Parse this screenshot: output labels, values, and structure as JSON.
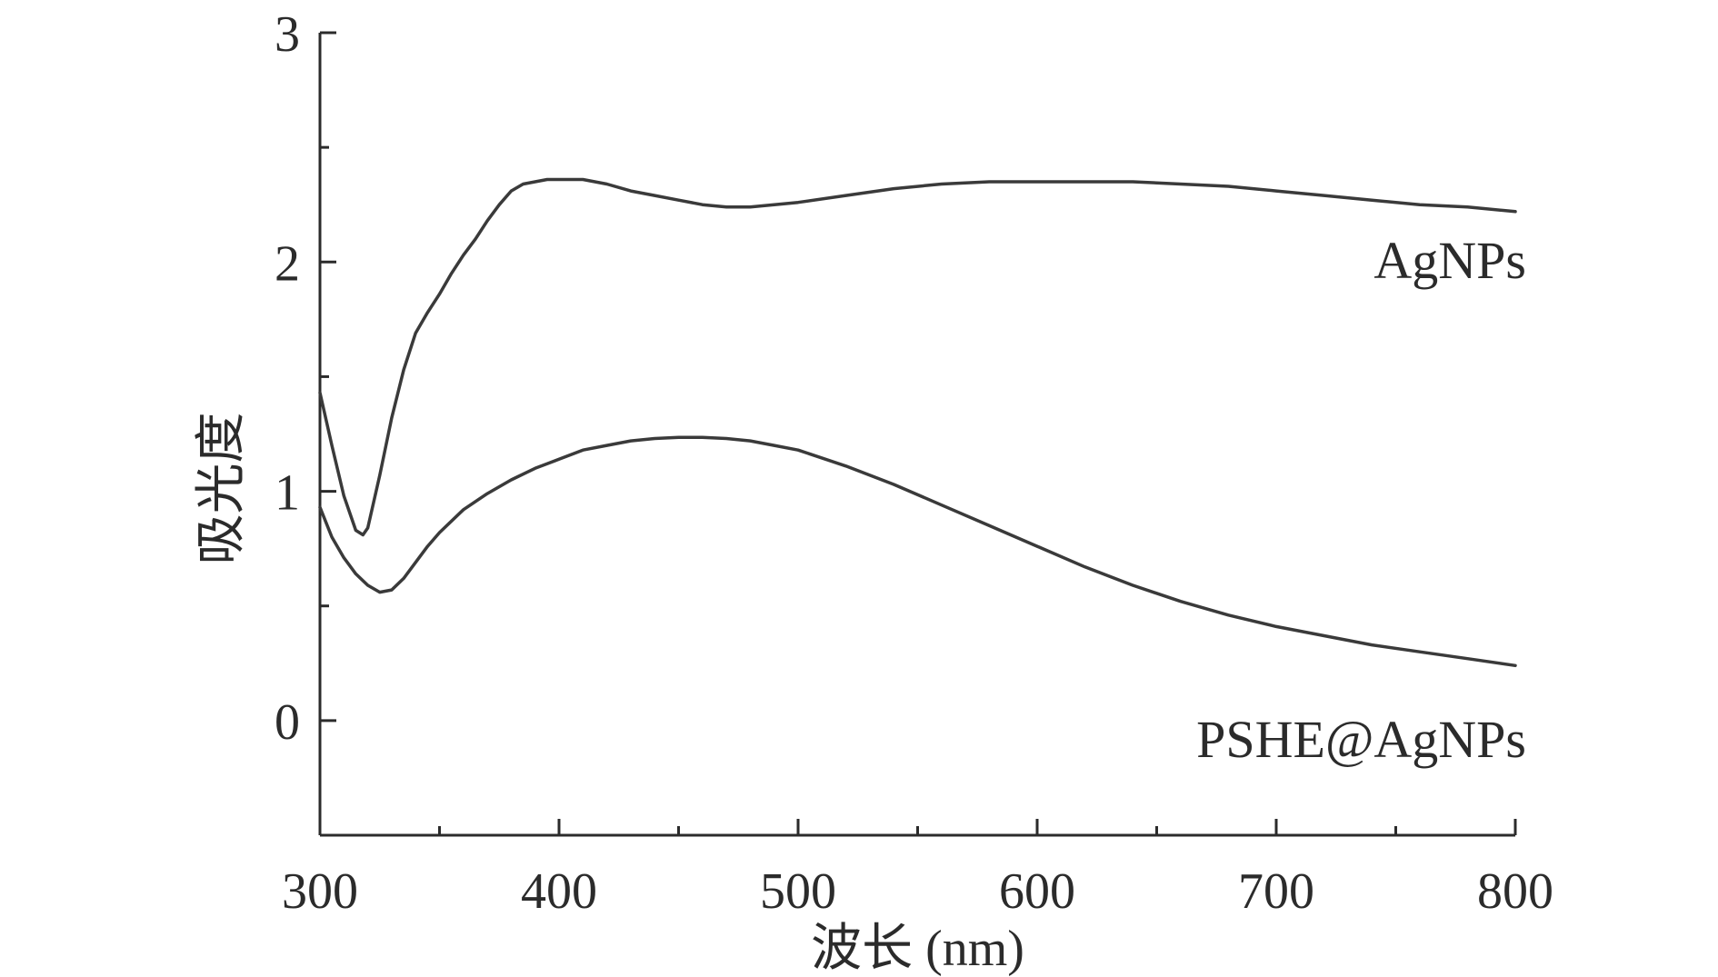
{
  "chart_data": {
    "type": "line",
    "xlabel": "波长 (nm)",
    "ylabel": "吸光度",
    "xlim": [
      300,
      800
    ],
    "ylim": [
      -0.5,
      3
    ],
    "x_ticks": [
      300,
      400,
      500,
      600,
      700,
      800
    ],
    "x_tick_labels": [
      "300",
      "400",
      "500",
      "600",
      "700",
      "800"
    ],
    "x_minor_ticks": [
      350,
      450,
      550,
      650,
      750
    ],
    "y_ticks": [
      0,
      1,
      2,
      3
    ],
    "y_tick_labels": [
      "0",
      "1",
      "2",
      "3"
    ],
    "y_minor_ticks": [
      0.5,
      1.5,
      2.5
    ],
    "grid": false,
    "legend": "none",
    "series": [
      {
        "name": "AgNPs",
        "x": [
          300,
          305,
          310,
          315,
          318,
          320,
          325,
          330,
          335,
          340,
          345,
          350,
          355,
          360,
          365,
          370,
          375,
          380,
          385,
          390,
          395,
          400,
          410,
          420,
          430,
          440,
          450,
          460,
          470,
          480,
          490,
          500,
          520,
          540,
          560,
          580,
          600,
          620,
          640,
          660,
          680,
          700,
          720,
          740,
          760,
          780,
          800
        ],
        "y": [
          1.43,
          1.2,
          0.98,
          0.83,
          0.81,
          0.84,
          1.07,
          1.32,
          1.53,
          1.69,
          1.78,
          1.86,
          1.95,
          2.03,
          2.1,
          2.18,
          2.25,
          2.31,
          2.34,
          2.35,
          2.36,
          2.36,
          2.36,
          2.34,
          2.31,
          2.29,
          2.27,
          2.25,
          2.24,
          2.24,
          2.25,
          2.26,
          2.29,
          2.32,
          2.34,
          2.35,
          2.35,
          2.35,
          2.35,
          2.34,
          2.33,
          2.31,
          2.29,
          2.27,
          2.25,
          2.24,
          2.22
        ]
      },
      {
        "name": "PSHE@AgNPs",
        "x": [
          300,
          305,
          310,
          315,
          320,
          325,
          330,
          335,
          340,
          345,
          350,
          360,
          370,
          380,
          390,
          400,
          410,
          420,
          430,
          440,
          450,
          460,
          470,
          480,
          490,
          500,
          520,
          540,
          560,
          580,
          600,
          620,
          640,
          660,
          680,
          700,
          720,
          740,
          760,
          780,
          800
        ],
        "y": [
          0.93,
          0.8,
          0.71,
          0.64,
          0.59,
          0.56,
          0.57,
          0.62,
          0.69,
          0.76,
          0.82,
          0.92,
          0.99,
          1.05,
          1.1,
          1.14,
          1.18,
          1.2,
          1.22,
          1.23,
          1.235,
          1.235,
          1.23,
          1.22,
          1.2,
          1.18,
          1.11,
          1.03,
          0.94,
          0.85,
          0.76,
          0.67,
          0.59,
          0.52,
          0.46,
          0.41,
          0.37,
          0.33,
          0.3,
          0.27,
          0.24
        ]
      }
    ]
  }
}
